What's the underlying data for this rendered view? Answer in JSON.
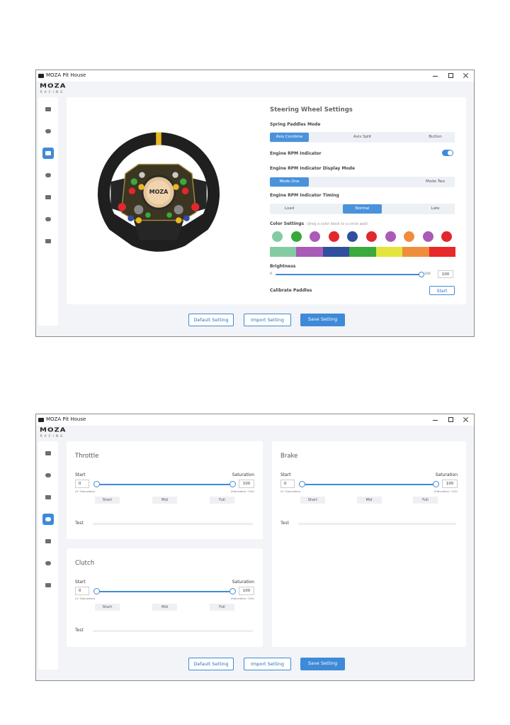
{
  "screens": [
    {
      "app_title": "MOZA Pit House",
      "logo": "MOZA",
      "logo_sub": "RACING",
      "active_nav": 2,
      "wheel_logo": "MOZA",
      "settings": {
        "title": "Steering Wheel Settings",
        "paddles": {
          "label": "Spring Paddles Mode",
          "options": [
            "Axis Combine",
            "Axis Split",
            "Button"
          ],
          "selected": 0
        },
        "rpm_indicator": {
          "label": "Engine RPM Indicator",
          "on": true
        },
        "display_mode": {
          "label": "Engine RPM Indicator Display Mode",
          "options": [
            "Mode One",
            "Mode Two"
          ],
          "selected": 0
        },
        "timing": {
          "label": "Engine RPM Indicator Timing",
          "options": [
            "Load",
            "Normal",
            "Late"
          ],
          "selected": 1
        },
        "color": {
          "label": "Color Settings",
          "hint": "(drag a color block to a circle pad)",
          "pads": [
            "#84cba2",
            "#38a83c",
            "#a95bb6",
            "#e2282e",
            "#2f4e9f",
            "#e2282e",
            "#a95bb6",
            "#f08d3d",
            "#a95bb6",
            "#e2282e"
          ],
          "blocks": [
            "#84cba2",
            "#a95bb6",
            "#30509f",
            "#3aaa3c",
            "#e3e43c",
            "#f08d3d",
            "#e8282a"
          ]
        },
        "brightness": {
          "label": "Brightness",
          "min": "0",
          "max": "100",
          "value": "100"
        },
        "calibrate": {
          "label": "Calibrate Paddles",
          "button": "Start"
        }
      },
      "buttons": [
        "Default Setting",
        "Import Setting",
        "Save Setting"
      ]
    },
    {
      "app_title": "MOZA Pit House",
      "logo": "MOZA",
      "logo_sub": "RACING",
      "active_nav": 3,
      "pedals": [
        {
          "title": "Throttle",
          "start_label": "Start",
          "saturation_label": "Saturation",
          "start": "0",
          "saturation": "100",
          "start_range": "(0~Saturation)",
          "saturation_range": "(Saturation~100)",
          "presets": [
            "Short",
            "Mid",
            "Full"
          ],
          "test": "Test"
        },
        {
          "title": "Brake",
          "start_label": "Start",
          "saturation_label": "Saturation",
          "start": "0",
          "saturation": "100",
          "start_range": "(0~Saturation)",
          "saturation_range": "(Saturation~100)",
          "presets": [
            "Short",
            "Mid",
            "Full"
          ],
          "test": "Test"
        },
        {
          "title": "Clutch",
          "start_label": "Start",
          "saturation_label": "Saturation",
          "start": "0",
          "saturation": "100",
          "start_range": "(0~Saturation)",
          "saturation_range": "(Saturation~100)",
          "presets": [
            "Short",
            "Mid",
            "Full"
          ],
          "test": "Test"
        }
      ],
      "buttons": [
        "Default Setting",
        "Import Setting",
        "Save Setting"
      ]
    }
  ]
}
